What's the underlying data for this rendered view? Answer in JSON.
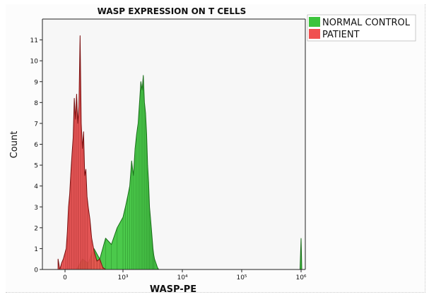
{
  "chart_data": {
    "type": "area",
    "title": "WASP EXPRESSION ON T CELLS",
    "xlabel": "WASP-PE",
    "ylabel": "Count",
    "x_scale": "biexponential",
    "x_ticks": [
      {
        "value": 0,
        "label": "0"
      },
      {
        "value": 1000,
        "label": "10³"
      },
      {
        "value": 10000,
        "label": "10⁴"
      },
      {
        "value": 100000,
        "label": "10⁵"
      },
      {
        "value": 1000000,
        "label": "10⁶"
      }
    ],
    "ylim": [
      0,
      12
    ],
    "y_ticks": [
      0,
      1,
      2,
      3,
      4,
      5,
      6,
      7,
      8,
      9,
      10,
      11
    ],
    "legend_position": "top-right",
    "series": [
      {
        "name": "NORMAL CONTROL",
        "color": "#3cc43c",
        "edge_color": "#1a6e1a",
        "x": [
          200,
          300,
          400,
          500,
          600,
          700,
          800,
          900,
          1000,
          1100,
          1200,
          1300,
          1400,
          1500,
          1600,
          1700,
          1800,
          1900,
          2000,
          2100,
          2200,
          2300,
          2400,
          2500,
          2600,
          2700,
          2800,
          2900,
          3000,
          3100,
          3200,
          3300,
          3400,
          3600,
          3800,
          4000,
          4200,
          1000000
        ],
        "values": [
          0,
          0.5,
          0.3,
          1.0,
          0.5,
          1.5,
          1.2,
          2.0,
          2.5,
          3.0,
          3.5,
          4.0,
          5.2,
          4.5,
          5.8,
          6.5,
          7.0,
          8.0,
          9.0,
          8.6,
          9.3,
          8.0,
          7.5,
          6.5,
          5.0,
          4.2,
          3.0,
          2.5,
          2.0,
          1.5,
          1.0,
          0.7,
          0.5,
          0.3,
          0.1,
          0,
          0,
          1.5
        ]
      },
      {
        "name": "PATIENT",
        "color": "#f05050",
        "edge_color": "#7a1010",
        "x": [
          -120,
          -90,
          -60,
          -30,
          0,
          20,
          40,
          60,
          80,
          100,
          120,
          140,
          160,
          180,
          200,
          220,
          240,
          260,
          280,
          300,
          320,
          340,
          360,
          380,
          400,
          430,
          460,
          500,
          550,
          600,
          650,
          700
        ],
        "values": [
          0.5,
          0,
          0.3,
          0.5,
          0.8,
          1.0,
          1.8,
          3.0,
          3.6,
          4.6,
          5.5,
          6.3,
          8.2,
          7.2,
          8.4,
          7.0,
          7.8,
          11.2,
          7.0,
          5.8,
          6.6,
          4.5,
          4.8,
          3.5,
          3.0,
          2.4,
          1.5,
          0.9,
          0.4,
          0.5,
          0.1,
          0
        ]
      }
    ]
  }
}
